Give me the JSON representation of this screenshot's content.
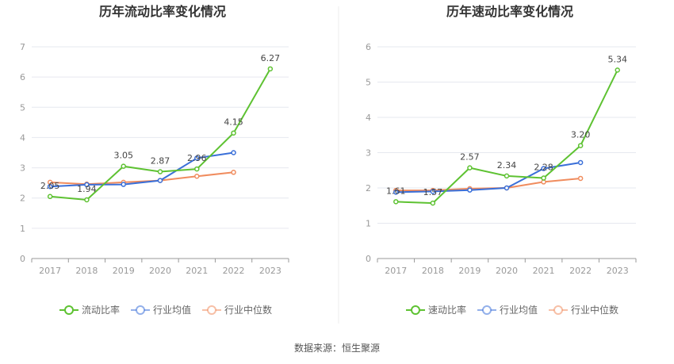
{
  "source": "数据来源：恒生聚源",
  "colors": {
    "company": "#5ec232",
    "industry_avg": "#3a6fd8",
    "industry_median": "#f08c5e",
    "grid": "#e6e8ef",
    "axis": "#999999"
  },
  "chart_data": [
    {
      "type": "line",
      "title": "历年流动比率变化情况",
      "categories": [
        "2017",
        "2018",
        "2019",
        "2020",
        "2021",
        "2022",
        "2023"
      ],
      "ylim": [
        0,
        7
      ],
      "yticks": [
        0,
        1,
        2,
        3,
        4,
        5,
        6,
        7
      ],
      "grid": true,
      "legend_position": "bottom",
      "series": [
        {
          "name": "流动比率",
          "key": "company",
          "values": [
            2.05,
            1.94,
            3.05,
            2.87,
            2.96,
            4.15,
            6.27
          ],
          "labels": [
            "2.05",
            "1.94",
            "3.05",
            "2.87",
            "2.96",
            "4.15",
            "6.27"
          ]
        },
        {
          "name": "行业均值",
          "key": "industry_avg",
          "values": [
            2.38,
            2.44,
            2.45,
            2.58,
            3.32,
            3.5,
            null
          ]
        },
        {
          "name": "行业中位数",
          "key": "industry_median",
          "values": [
            2.52,
            2.46,
            2.52,
            2.58,
            2.72,
            2.85,
            null
          ]
        }
      ]
    },
    {
      "type": "line",
      "title": "历年速动比率变化情况",
      "categories": [
        "2017",
        "2018",
        "2019",
        "2020",
        "2021",
        "2022",
        "2023"
      ],
      "ylim": [
        0,
        6
      ],
      "yticks": [
        0,
        1,
        2,
        3,
        4,
        5,
        6
      ],
      "grid": true,
      "legend_position": "bottom",
      "series": [
        {
          "name": "速动比率",
          "key": "company",
          "values": [
            1.61,
            1.57,
            2.57,
            2.34,
            2.28,
            3.2,
            5.34
          ],
          "labels": [
            "1.61",
            "1.57",
            "2.57",
            "2.34",
            "2.28",
            "3.20",
            "5.34"
          ]
        },
        {
          "name": "行业均值",
          "key": "industry_avg",
          "values": [
            1.88,
            1.9,
            1.94,
            2.0,
            2.55,
            2.72,
            null
          ]
        },
        {
          "name": "行业中位数",
          "key": "industry_median",
          "values": [
            1.93,
            1.93,
            1.98,
            2.0,
            2.17,
            2.27,
            null
          ]
        }
      ]
    }
  ]
}
